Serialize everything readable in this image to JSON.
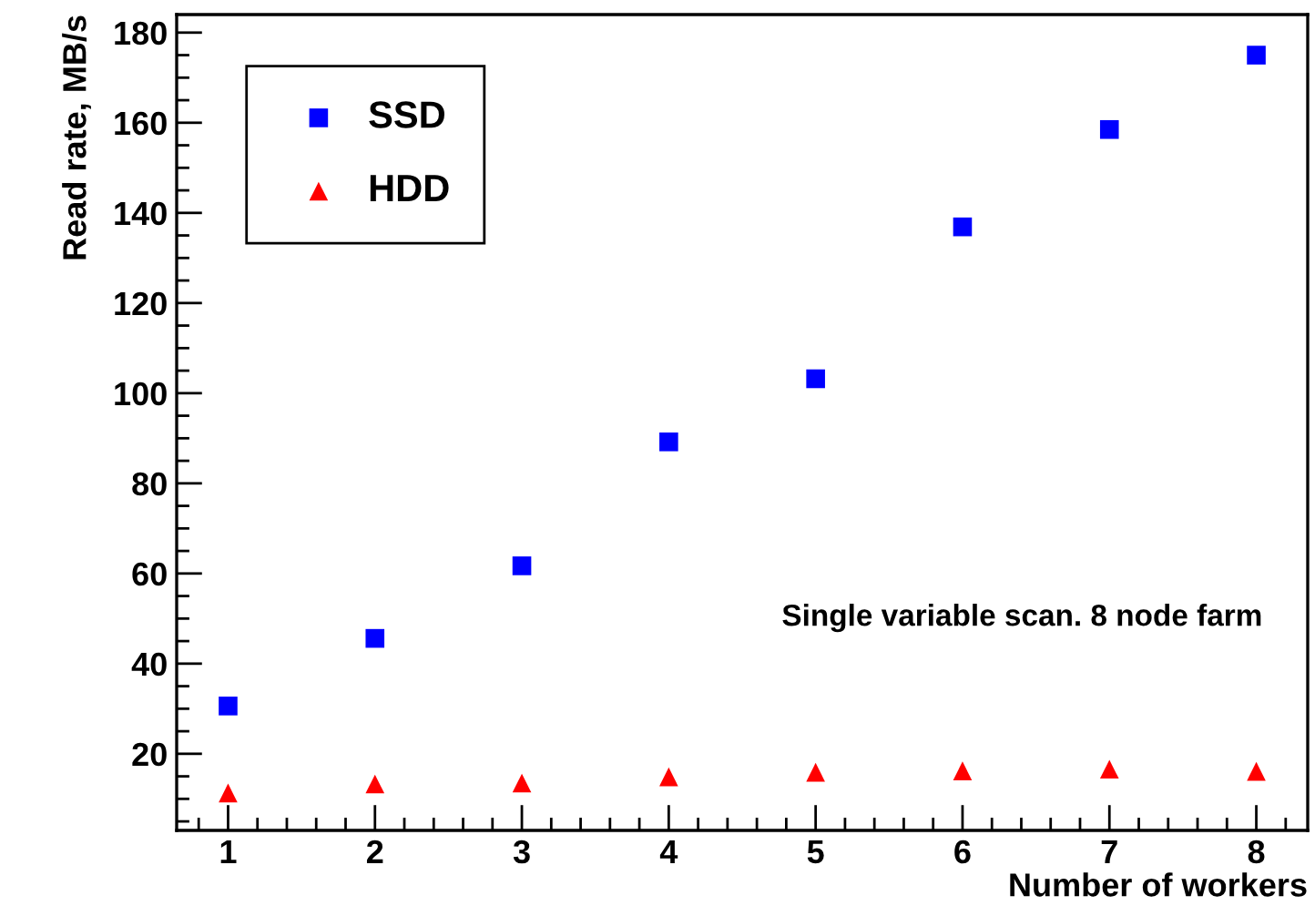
{
  "chart_data": {
    "type": "scatter",
    "xlabel": "Number of workers",
    "ylabel": "Read rate, MB/s",
    "x": [
      1,
      2,
      3,
      4,
      5,
      6,
      7,
      8
    ],
    "series": [
      {
        "name": "SSD",
        "color": "#0000ff",
        "marker": "square",
        "values": [
          30.6,
          45.6,
          61.7,
          89.2,
          103.2,
          136.9,
          158.5,
          175.0
        ]
      },
      {
        "name": "HDD",
        "color": "#ff0000",
        "marker": "triangle",
        "values": [
          11.3,
          13.3,
          13.5,
          14.9,
          15.9,
          16.2,
          16.6,
          16.1
        ]
      }
    ],
    "xlim": [
      0.65,
      8.35
    ],
    "xticks": [
      1,
      2,
      3,
      4,
      5,
      6,
      7,
      8
    ],
    "ylim": [
      3,
      184
    ],
    "yticks": [
      20,
      40,
      60,
      80,
      100,
      120,
      140,
      160,
      180
    ],
    "grid": false,
    "legend": "top left",
    "annotations": [
      {
        "text": "Single variable scan. 8 node farm"
      }
    ]
  }
}
